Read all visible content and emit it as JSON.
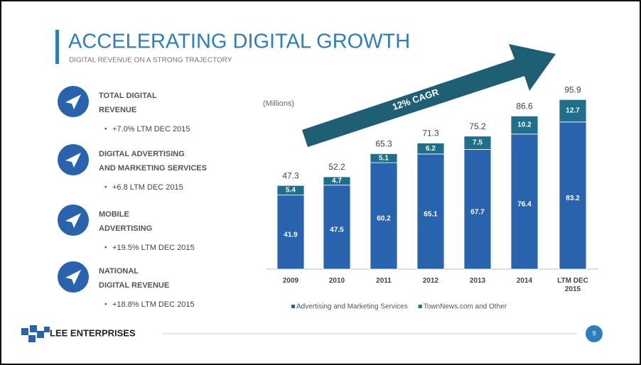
{
  "header": {
    "title": "ACCELERATING DIGITAL GROWTH",
    "subtitle": "DIGITAL REVENUE ON A STRONG TRAJECTORY"
  },
  "highlights": [
    {
      "title": [
        "TOTAL DIGITAL",
        "REVENUE"
      ],
      "detail": "+7.0% LTM DEC 2015"
    },
    {
      "title": [
        "DIGITAL ADVERTISING",
        "AND MARKETING SERVICES"
      ],
      "detail": "+6.8 LTM DEC 2015"
    },
    {
      "title": [
        "MOBILE",
        "ADVERTISING"
      ],
      "detail": "+19.5% LTM DEC 2015"
    },
    {
      "title": [
        "NATIONAL",
        "DIGITAL REVENUE"
      ],
      "detail": "+18.8% LTM DEC 2015"
    }
  ],
  "footer": {
    "logo": "LEE ENTERPRISES",
    "page": "9"
  },
  "chart_data": {
    "type": "stacked_bar",
    "unit_label": "(Millions)",
    "annotation": "12% CAGR",
    "categories": [
      "2009",
      "2010",
      "2011",
      "2012",
      "2013",
      "2014",
      "LTM DEC 2015"
    ],
    "series": [
      {
        "name": "Advertising and Marketing Services",
        "color": "#2a63ad",
        "values": [
          41.9,
          47.5,
          60.2,
          65.1,
          67.7,
          76.4,
          83.2
        ]
      },
      {
        "name": "TownNews.com and Other",
        "color": "#1f6f8b",
        "values": [
          5.4,
          4.7,
          5.1,
          6.2,
          7.5,
          10.2,
          12.7
        ]
      }
    ],
    "totals": [
      47.3,
      52.2,
      65.3,
      71.3,
      75.2,
      86.6,
      95.9
    ],
    "ylim": [
      0,
      100
    ],
    "legend": "bottom"
  }
}
